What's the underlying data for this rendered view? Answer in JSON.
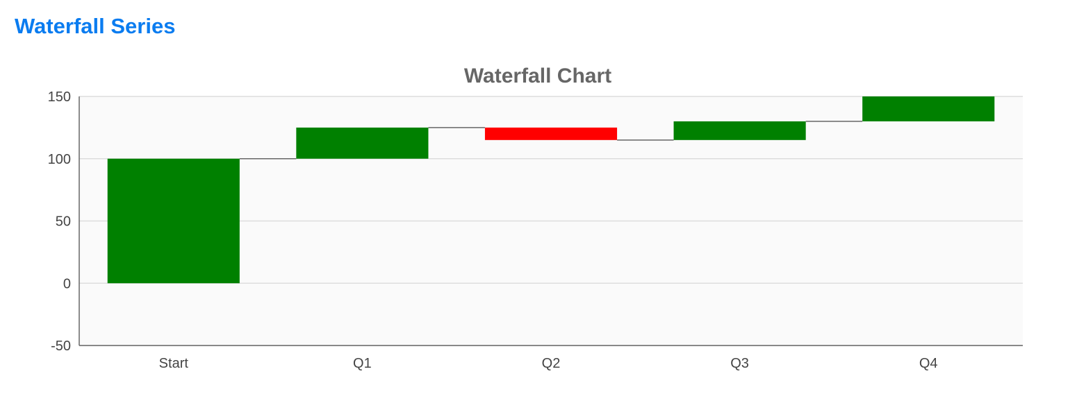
{
  "page": {
    "heading": "Waterfall Series"
  },
  "chart_data": {
    "type": "bar",
    "subtype": "waterfall",
    "title": "Waterfall Chart",
    "categories": [
      "Start",
      "Q1",
      "Q2",
      "Q3",
      "Q4"
    ],
    "series": [
      {
        "values": [
          100,
          25,
          -10,
          15,
          20
        ],
        "cumulative_end": [
          100,
          125,
          115,
          130,
          150
        ]
      }
    ],
    "ylim": [
      -50,
      150
    ],
    "yticks": [
      -50,
      0,
      50,
      100,
      150
    ],
    "grid": true,
    "legend": "none",
    "colors": {
      "increase": "#008000",
      "decrease": "#ff0000",
      "connector": "#666666",
      "plot_background": "#fafafa",
      "gridline": "#dddddd",
      "axis": "#666666"
    }
  }
}
